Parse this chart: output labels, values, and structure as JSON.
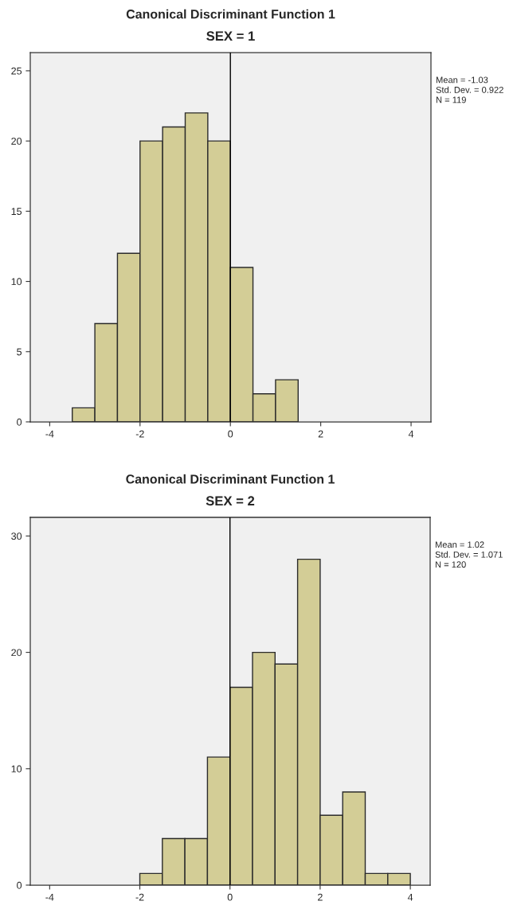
{
  "chart_data": [
    {
      "type": "histogram",
      "title": "Canonical Discriminant Function 1",
      "subtitle": "SEX = 1",
      "bins": [
        -3.5,
        -3.0,
        -2.5,
        -2.0,
        -1.5,
        -1.0,
        -0.5,
        0.0,
        0.5,
        1.0,
        1.5
      ],
      "values": [
        1,
        7,
        12,
        20,
        21,
        22,
        20,
        11,
        2,
        3
      ],
      "color": "#d3cd96",
      "xlim": [
        -4.43,
        4.44
      ],
      "ylim": [
        0,
        26.3
      ],
      "xticks": [
        -4,
        -2,
        0,
        2,
        4
      ],
      "yticks": [
        0,
        5,
        10,
        15,
        20,
        25
      ],
      "ref_lines": [
        {
          "axis": "x",
          "value": 0,
          "color": "#000000"
        }
      ],
      "annotations": [
        "Mean = -1.03",
        "Std. Dev. = 0.922",
        "N = 119"
      ],
      "grid": false,
      "legend": false
    },
    {
      "type": "histogram",
      "title": "Canonical Discriminant Function 1",
      "subtitle": "SEX = 2",
      "bins": [
        -2.0,
        -1.5,
        -1.0,
        -0.5,
        0.0,
        0.5,
        1.0,
        1.5,
        2.0,
        2.5,
        3.0,
        3.5,
        4.0
      ],
      "values": [
        1,
        4,
        4,
        11,
        17,
        20,
        19,
        28,
        6,
        8,
        1,
        1
      ],
      "color": "#d3cd96",
      "xlim": [
        -4.43,
        4.44
      ],
      "ylim": [
        0,
        31.6
      ],
      "xticks": [
        -4,
        -2,
        0,
        2,
        4
      ],
      "yticks": [
        0,
        10,
        20,
        30
      ],
      "ref_lines": [
        {
          "axis": "x",
          "value": 0,
          "color": "#000000"
        }
      ],
      "annotations": [
        "Mean = 1.02",
        "Std. Dev. = 1.071",
        "N = 120"
      ],
      "grid": false,
      "legend": false
    }
  ]
}
